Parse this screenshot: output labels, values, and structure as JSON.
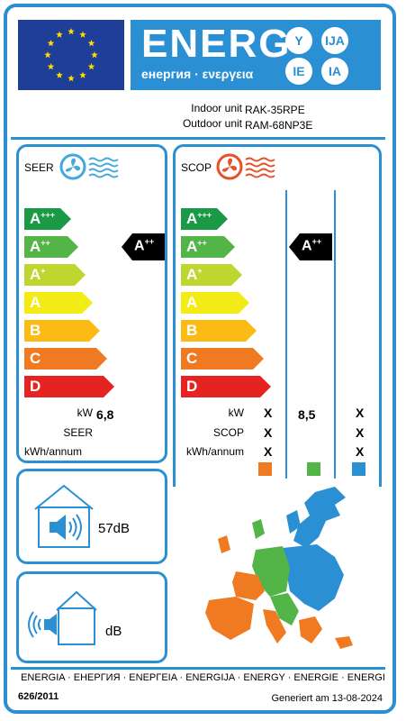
{
  "header": {
    "energy_word": "ENERG",
    "energy_sub": "енергия · ενεργεια",
    "lang_codes": [
      "Y",
      "IJA",
      "IE",
      "IA"
    ]
  },
  "units": {
    "indoor_label": "Indoor unit",
    "outdoor_label": "Outdoor unit",
    "indoor_model": "RAK-35RPE",
    "outdoor_model": "RAM-68NP3E"
  },
  "classes": [
    {
      "letter": "A",
      "sup": "+++",
      "color": "#1a9a46"
    },
    {
      "letter": "A",
      "sup": "++",
      "color": "#53b548"
    },
    {
      "letter": "A",
      "sup": "+",
      "color": "#bfd62f"
    },
    {
      "letter": "A",
      "sup": "",
      "color": "#f2eb16"
    },
    {
      "letter": "B",
      "sup": "",
      "color": "#fbbb14"
    },
    {
      "letter": "C",
      "sup": "",
      "color": "#f07a22"
    },
    {
      "letter": "D",
      "sup": "",
      "color": "#e42322"
    }
  ],
  "seer": {
    "title": "SEER",
    "rating_letter": "A",
    "rating_sup": "++",
    "kw_label": "kW",
    "kw_value": "6,8",
    "seer_label": "SEER",
    "kwh_label": "kWh/annum"
  },
  "scop": {
    "title": "SCOP",
    "rating_letter": "A",
    "rating_sup": "++",
    "kw_label": "kW",
    "scop_label": "SCOP",
    "kwh_label": "kWh/annum",
    "x_mark": "X",
    "middle_value": "8,5",
    "zone_colors": [
      "#f07a22",
      "#53b548",
      "#2a8fd3"
    ]
  },
  "noise": {
    "indoor_value": "57dB",
    "outdoor_value": "dB"
  },
  "footer": {
    "languages": "ENERGIA · ЕНЕРГИЯ · ΕΝΕΡΓΕΙΑ · ENERGIJA · ENERGY · ENERGIE · ENERGI",
    "regulation": "626/2011",
    "generated": "Generiert am 13-08-2024"
  }
}
